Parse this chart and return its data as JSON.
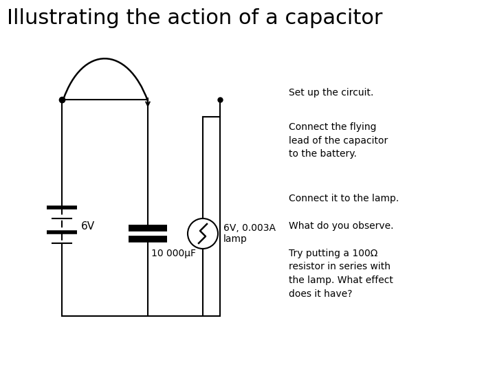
{
  "title": "Illustrating the action of a capacitor",
  "title_fontsize": 22,
  "background_color": "#ffffff",
  "text_color": "#000000",
  "instructions": [
    "Set up the circuit.",
    "Connect the flying\nlead of the capacitor\nto the battery.",
    "Connect it to the lamp.",
    "What do you observe.",
    "Try putting a 100Ω\nresistor in series with\nthe lamp. What effect\ndoes it have?"
  ],
  "label_6v": "6V",
  "label_capacitor": "10 000μF",
  "label_lamp": "6V, 0.003A\nlamp",
  "circuit_color": "#000000",
  "line_width": 1.5
}
